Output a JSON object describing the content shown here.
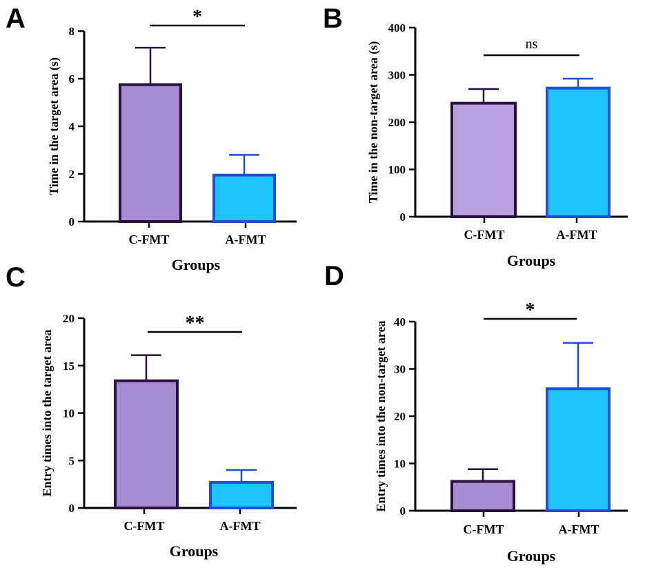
{
  "chart_data": [
    {
      "panel": "A",
      "type": "bar",
      "categories": [
        "C-FMT",
        "A-FMT"
      ],
      "values": [
        5.75,
        1.95
      ],
      "errors": [
        1.55,
        0.85
      ],
      "ylabel": "Time in the target area (s)",
      "xlabel": "Groups",
      "ylim": [
        0,
        8
      ],
      "yticks": [
        "0",
        "2",
        "4",
        "6",
        "8"
      ],
      "significance": "*",
      "fill_colors": [
        "#a48bd2",
        "#1ec4ff"
      ],
      "edge_colors": [
        "#2a1040",
        "#1e4fd8"
      ]
    },
    {
      "panel": "B",
      "type": "bar",
      "categories": [
        "C-FMT",
        "A-FMT"
      ],
      "values": [
        240,
        272
      ],
      "errors": [
        30,
        20
      ],
      "ylabel": "Time in the non-target area (s)",
      "xlabel": "Groups",
      "ylim": [
        0,
        400
      ],
      "yticks": [
        "0",
        "100",
        "200",
        "300",
        "400"
      ],
      "significance": "ns",
      "fill_colors": [
        "#b7a1de",
        "#1ec4ff"
      ],
      "edge_colors": [
        "#2a1040",
        "#1e4fd8"
      ]
    },
    {
      "panel": "C",
      "type": "bar",
      "categories": [
        "C-FMT",
        "A-FMT"
      ],
      "values": [
        13.4,
        2.7
      ],
      "errors": [
        2.7,
        1.3
      ],
      "ylabel": "Entry times into the target area",
      "xlabel": "Groups",
      "ylim": [
        0,
        20
      ],
      "yticks": [
        "0",
        "5",
        "10",
        "15",
        "20"
      ],
      "significance": "**",
      "fill_colors": [
        "#a48bd2",
        "#1ec4ff"
      ],
      "edge_colors": [
        "#2a1040",
        "#1e4fd8"
      ]
    },
    {
      "panel": "D",
      "type": "bar",
      "categories": [
        "C-FMT",
        "A-FMT"
      ],
      "values": [
        6.2,
        25.8
      ],
      "errors": [
        2.6,
        9.7
      ],
      "ylabel": "Entry times into the non-target area",
      "xlabel": "Groups",
      "ylim": [
        0,
        40
      ],
      "yticks": [
        "0",
        "10",
        "20",
        "30",
        "40"
      ],
      "significance": "*",
      "fill_colors": [
        "#a48bd2",
        "#1ec4ff"
      ],
      "edge_colors": [
        "#2a1040",
        "#1e4fd8"
      ]
    }
  ]
}
